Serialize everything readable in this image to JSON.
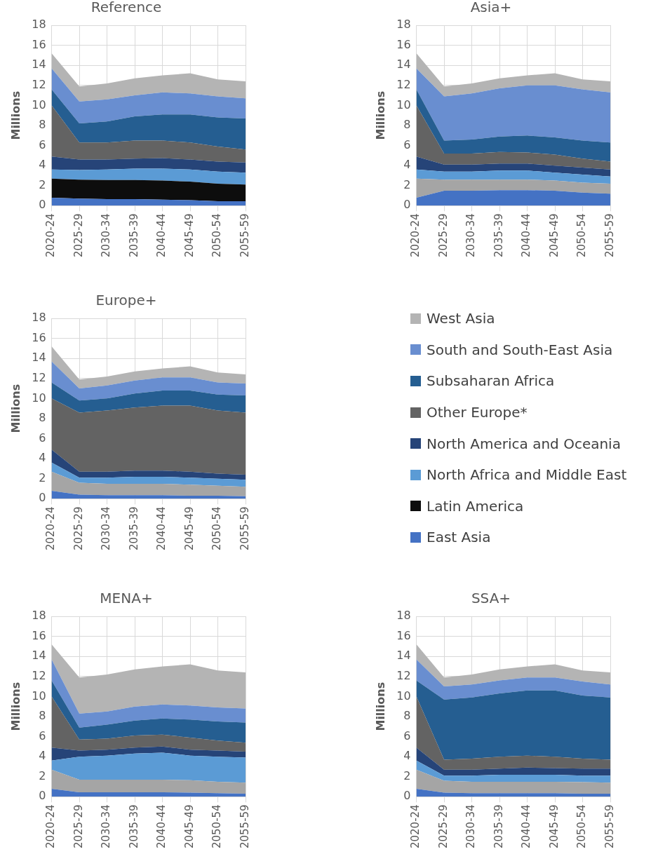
{
  "chart_data": [
    {
      "type": "area",
      "title": "Reference",
      "ylabel": "Millions",
      "stacked": true,
      "grid": true,
      "legend": "right",
      "categories": [
        "2020-24",
        "2025-29",
        "2030-34",
        "2035-39",
        "2040-44",
        "2045-49",
        "2050-54",
        "2055-59"
      ],
      "ylim": [
        0,
        18
      ],
      "yticks": [
        0,
        2,
        4,
        6,
        8,
        10,
        12,
        14,
        16,
        18
      ],
      "series": [
        {
          "name": "East Asia",
          "color": "#4472c4",
          "values": [
            0.8,
            0.7,
            0.65,
            0.65,
            0.6,
            0.55,
            0.45,
            0.45
          ]
        },
        {
          "name": "Latin America",
          "color": "#0d0d0d",
          "values": [
            1.9,
            1.9,
            1.9,
            1.9,
            1.9,
            1.85,
            1.75,
            1.65
          ]
        },
        {
          "name": "North Africa and Middle East",
          "color": "#5b9bd5",
          "values": [
            0.9,
            0.95,
            1.05,
            1.15,
            1.2,
            1.2,
            1.2,
            1.2
          ]
        },
        {
          "name": "North America and Oceania",
          "color": "#264478",
          "values": [
            1.3,
            1.05,
            1.0,
            1.0,
            1.05,
            1.0,
            1.0,
            1.0
          ]
        },
        {
          "name": "Other Europe*",
          "color": "#636363",
          "values": [
            5.1,
            1.7,
            1.7,
            1.8,
            1.75,
            1.7,
            1.5,
            1.3
          ]
        },
        {
          "name": "Subsaharan Africa",
          "color": "#255e91",
          "values": [
            1.6,
            1.9,
            2.1,
            2.4,
            2.6,
            2.8,
            2.9,
            3.1
          ]
        },
        {
          "name": "South and South-East Asia",
          "color": "#698ed0",
          "values": [
            2.1,
            2.2,
            2.2,
            2.1,
            2.2,
            2.1,
            2.1,
            2.0
          ]
        },
        {
          "name": "West Asia",
          "color": "#b4b4b4",
          "values": [
            1.5,
            1.5,
            1.6,
            1.7,
            1.7,
            2.0,
            1.7,
            1.7
          ]
        }
      ]
    },
    {
      "type": "area",
      "title": "Asia+",
      "ylabel": "Millions",
      "stacked": true,
      "grid": true,
      "categories": [
        "2020-24",
        "2025-29",
        "2030-34",
        "2035-39",
        "2040-44",
        "2045-49",
        "2050-54",
        "2055-59"
      ],
      "ylim": [
        0,
        18
      ],
      "yticks": [
        0,
        2,
        4,
        6,
        8,
        10,
        12,
        14,
        16,
        18
      ],
      "series": [
        {
          "color": "#4472c4",
          "values": [
            0.8,
            1.5,
            1.5,
            1.55,
            1.55,
            1.5,
            1.3,
            1.2
          ]
        },
        {
          "color": "#a5a5a5",
          "values": [
            1.9,
            1.1,
            1.1,
            1.05,
            1.05,
            1.0,
            1.0,
            1.0
          ]
        },
        {
          "color": "#5b9bd5",
          "values": [
            0.9,
            0.8,
            0.8,
            0.9,
            0.9,
            0.8,
            0.8,
            0.7
          ]
        },
        {
          "color": "#264478",
          "values": [
            1.3,
            0.7,
            0.7,
            0.7,
            0.7,
            0.7,
            0.7,
            0.7
          ]
        },
        {
          "color": "#636363",
          "values": [
            5.1,
            1.1,
            1.1,
            1.15,
            1.1,
            1.1,
            0.9,
            0.8
          ]
        },
        {
          "color": "#255e91",
          "values": [
            1.6,
            1.3,
            1.4,
            1.55,
            1.7,
            1.7,
            1.8,
            1.9
          ]
        },
        {
          "color": "#698ed0",
          "values": [
            2.1,
            4.4,
            4.6,
            4.8,
            5.0,
            5.2,
            5.1,
            5.0
          ]
        },
        {
          "color": "#b4b4b4",
          "values": [
            1.5,
            1.0,
            1.0,
            1.0,
            1.0,
            1.2,
            1.0,
            1.1
          ]
        }
      ]
    },
    {
      "type": "area",
      "title": "Europe+",
      "ylabel": "Millions",
      "stacked": true,
      "grid": true,
      "categories": [
        "2020-24",
        "2025-29",
        "2030-34",
        "2035-39",
        "2040-44",
        "2045-49",
        "2050-54",
        "2055-59"
      ],
      "ylim": [
        0,
        18
      ],
      "yticks": [
        0,
        2,
        4,
        6,
        8,
        10,
        12,
        14,
        16,
        18
      ],
      "series": [
        {
          "color": "#4472c4",
          "values": [
            0.8,
            0.4,
            0.35,
            0.35,
            0.35,
            0.3,
            0.3,
            0.25
          ]
        },
        {
          "color": "#a5a5a5",
          "values": [
            1.9,
            1.2,
            1.15,
            1.15,
            1.15,
            1.1,
            1.0,
            0.95
          ]
        },
        {
          "color": "#5b9bd5",
          "values": [
            0.9,
            0.5,
            0.6,
            0.7,
            0.7,
            0.7,
            0.7,
            0.7
          ]
        },
        {
          "color": "#264478",
          "values": [
            1.3,
            0.6,
            0.6,
            0.6,
            0.6,
            0.6,
            0.5,
            0.5
          ]
        },
        {
          "color": "#636363",
          "values": [
            5.1,
            5.9,
            6.1,
            6.3,
            6.5,
            6.6,
            6.3,
            6.2
          ]
        },
        {
          "color": "#255e91",
          "values": [
            1.6,
            1.2,
            1.2,
            1.4,
            1.5,
            1.5,
            1.6,
            1.7
          ]
        },
        {
          "color": "#698ed0",
          "values": [
            2.1,
            1.2,
            1.3,
            1.3,
            1.3,
            1.3,
            1.2,
            1.2
          ]
        },
        {
          "color": "#b4b4b4",
          "values": [
            1.5,
            0.9,
            0.9,
            0.9,
            0.9,
            1.1,
            1.0,
            0.9
          ]
        }
      ]
    },
    {
      "type": "area",
      "title": "MENA+",
      "ylabel": "Millions",
      "stacked": true,
      "grid": true,
      "categories": [
        "2020-24",
        "2025-29",
        "2030-34",
        "2035-39",
        "2040-44",
        "2045-49",
        "2050-54",
        "2055-59"
      ],
      "ylim": [
        0,
        18
      ],
      "yticks": [
        0,
        2,
        4,
        6,
        8,
        10,
        12,
        14,
        16,
        18
      ],
      "series": [
        {
          "color": "#4472c4",
          "values": [
            0.8,
            0.45,
            0.45,
            0.45,
            0.45,
            0.4,
            0.35,
            0.3
          ]
        },
        {
          "color": "#a5a5a5",
          "values": [
            1.9,
            1.25,
            1.25,
            1.25,
            1.25,
            1.25,
            1.15,
            1.1
          ]
        },
        {
          "color": "#5b9bd5",
          "values": [
            0.9,
            2.3,
            2.4,
            2.6,
            2.7,
            2.45,
            2.5,
            2.5
          ]
        },
        {
          "color": "#264478",
          "values": [
            1.3,
            0.6,
            0.6,
            0.6,
            0.6,
            0.6,
            0.6,
            0.6
          ]
        },
        {
          "color": "#636363",
          "values": [
            5.1,
            1.1,
            1.1,
            1.2,
            1.2,
            1.2,
            1.0,
            0.9
          ]
        },
        {
          "color": "#255e91",
          "values": [
            1.6,
            1.2,
            1.4,
            1.5,
            1.6,
            1.8,
            1.9,
            2.0
          ]
        },
        {
          "color": "#698ed0",
          "values": [
            2.1,
            1.4,
            1.3,
            1.4,
            1.4,
            1.4,
            1.4,
            1.4
          ]
        },
        {
          "color": "#b4b4b4",
          "values": [
            1.5,
            3.6,
            3.7,
            3.7,
            3.8,
            4.1,
            3.7,
            3.6
          ]
        }
      ]
    },
    {
      "type": "area",
      "title": "SSA+",
      "ylabel": "Millions",
      "stacked": true,
      "grid": true,
      "categories": [
        "2020-24",
        "2025-29",
        "2030-34",
        "2035-39",
        "2040-44",
        "2045-49",
        "2050-54",
        "2055-59"
      ],
      "ylim": [
        0,
        18
      ],
      "yticks": [
        0,
        2,
        4,
        6,
        8,
        10,
        12,
        14,
        16,
        18
      ],
      "series": [
        {
          "color": "#4472c4",
          "values": [
            0.8,
            0.4,
            0.35,
            0.35,
            0.35,
            0.35,
            0.3,
            0.3
          ]
        },
        {
          "color": "#a5a5a5",
          "values": [
            1.9,
            1.2,
            1.15,
            1.15,
            1.15,
            1.15,
            1.15,
            1.1
          ]
        },
        {
          "color": "#5b9bd5",
          "values": [
            0.9,
            0.5,
            0.6,
            0.7,
            0.7,
            0.7,
            0.65,
            0.7
          ]
        },
        {
          "color": "#264478",
          "values": [
            1.3,
            0.6,
            0.6,
            0.6,
            0.7,
            0.65,
            0.7,
            0.7
          ]
        },
        {
          "color": "#636363",
          "values": [
            5.1,
            1.0,
            1.1,
            1.2,
            1.2,
            1.15,
            1.0,
            0.9
          ]
        },
        {
          "color": "#255e91",
          "values": [
            1.6,
            6.0,
            6.1,
            6.3,
            6.5,
            6.6,
            6.3,
            6.2
          ]
        },
        {
          "color": "#698ed0",
          "values": [
            2.1,
            1.3,
            1.3,
            1.3,
            1.3,
            1.3,
            1.4,
            1.3
          ]
        },
        {
          "color": "#b4b4b4",
          "values": [
            1.5,
            0.9,
            1.0,
            1.1,
            1.1,
            1.3,
            1.1,
            1.2
          ]
        }
      ]
    }
  ]
}
